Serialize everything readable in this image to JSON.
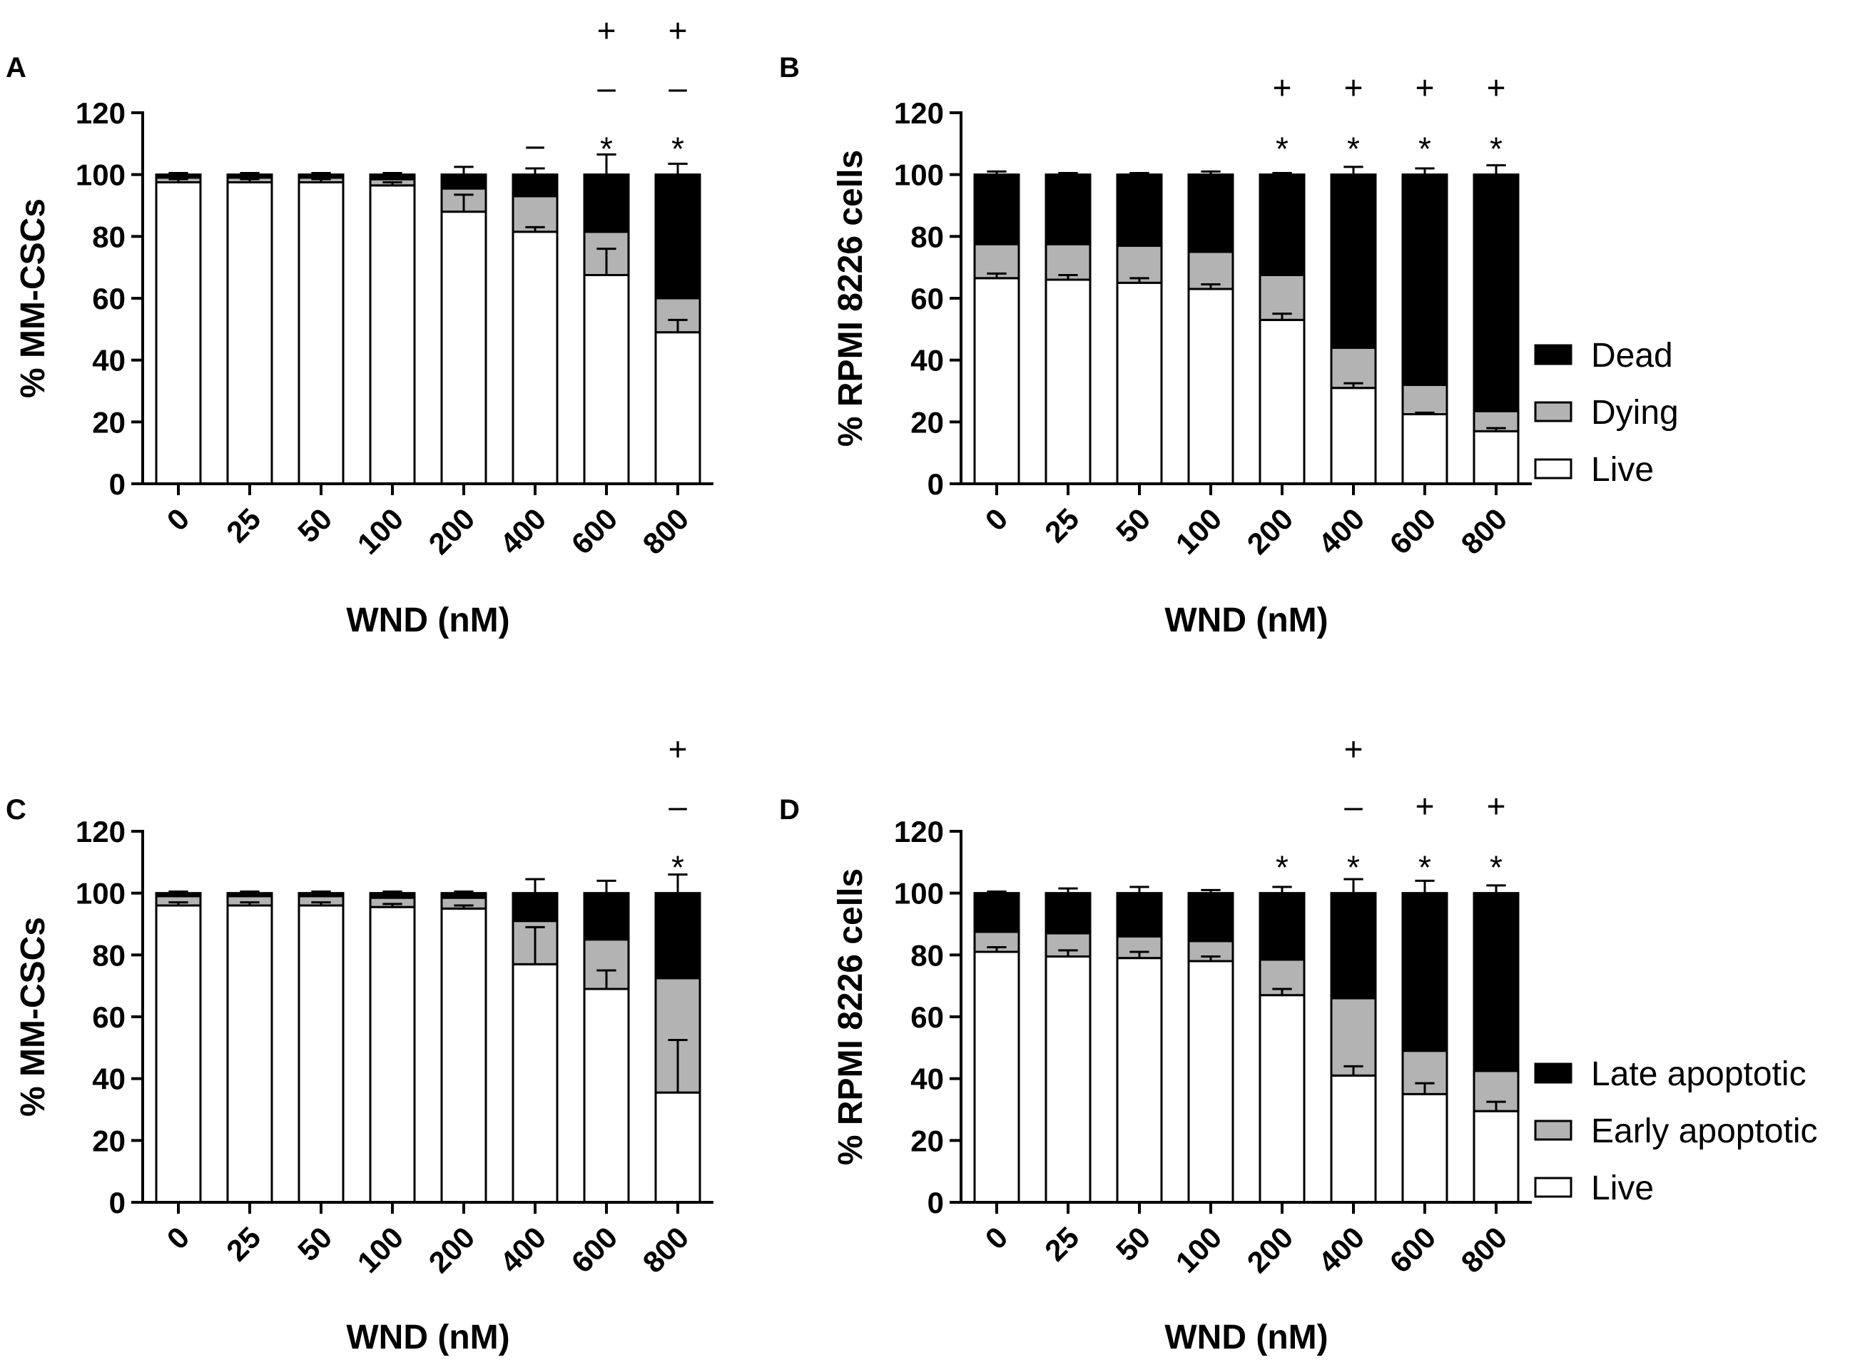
{
  "colors": {
    "live": "#ffffff",
    "mid": "#b3b3b3",
    "dead": "#000000",
    "axis": "#000000"
  },
  "chart_data": [
    {
      "panel": "A",
      "type": "bar",
      "stacked": true,
      "xlabel": "WND (nM)",
      "ylabel": "% MM-CSCs",
      "ylim": [
        0,
        120
      ],
      "yticks": [
        "0",
        "20",
        "40",
        "60",
        "80",
        "100",
        "120"
      ],
      "categories": [
        "0",
        "25",
        "50",
        "100",
        "200",
        "400",
        "600",
        "800"
      ],
      "series": [
        {
          "name": "Live",
          "values": [
            97.5,
            97.5,
            97.5,
            96.5,
            88,
            81.5,
            67.5,
            49
          ],
          "errors": [
            1,
            1,
            1,
            1,
            5.5,
            1.5,
            8.5,
            4
          ]
        },
        {
          "name": "Dying",
          "values": [
            1.5,
            1.5,
            1.5,
            2,
            7.5,
            11.5,
            14,
            11
          ],
          "errors": [
            0,
            0,
            0,
            0,
            0,
            0,
            0,
            0
          ]
        },
        {
          "name": "Dead",
          "values": [
            1,
            1,
            1,
            1.5,
            4.5,
            7,
            18.5,
            40
          ],
          "errors": [
            0.5,
            0.5,
            0.5,
            0.5,
            2.5,
            2,
            6.5,
            3.5
          ]
        }
      ],
      "annotations": [
        {
          "category": "400",
          "marks": [
            "–"
          ]
        },
        {
          "category": "600",
          "marks": [
            "*",
            "–",
            "+"
          ]
        },
        {
          "category": "800",
          "marks": [
            "*",
            "–",
            "+"
          ]
        }
      ]
    },
    {
      "panel": "B",
      "type": "bar",
      "stacked": true,
      "xlabel": "WND (nM)",
      "ylabel": "% RPMI 8226 cells",
      "ylim": [
        0,
        120
      ],
      "yticks": [
        "0",
        "20",
        "40",
        "60",
        "80",
        "100",
        "120"
      ],
      "categories": [
        "0",
        "25",
        "50",
        "100",
        "200",
        "400",
        "600",
        "800"
      ],
      "legend": [
        "Dead",
        "Dying",
        "Live"
      ],
      "series": [
        {
          "name": "Live",
          "values": [
            66.5,
            66,
            65,
            63,
            53,
            31,
            22.5,
            17
          ],
          "errors": [
            1.5,
            1.5,
            1.5,
            1.5,
            2,
            1.5,
            0.5,
            1
          ]
        },
        {
          "name": "Dying",
          "values": [
            11,
            11.5,
            12,
            12,
            14.5,
            13,
            9.5,
            6.5
          ],
          "errors": [
            0,
            0,
            0,
            0,
            0,
            0,
            0,
            0
          ]
        },
        {
          "name": "Dead",
          "values": [
            22.5,
            22.5,
            23,
            25,
            32.5,
            56,
            68,
            76.5
          ],
          "errors": [
            1,
            0.5,
            0.5,
            1,
            0.5,
            2.5,
            2,
            3
          ]
        }
      ],
      "annotations": [
        {
          "category": "200",
          "marks": [
            "*",
            "+"
          ]
        },
        {
          "category": "400",
          "marks": [
            "*",
            "+"
          ]
        },
        {
          "category": "600",
          "marks": [
            "*",
            "+"
          ]
        },
        {
          "category": "800",
          "marks": [
            "*",
            "+"
          ]
        }
      ]
    },
    {
      "panel": "C",
      "type": "bar",
      "stacked": true,
      "xlabel": "WND (nM)",
      "ylabel": "% MM-CSCs",
      "ylim": [
        0,
        120
      ],
      "yticks": [
        "0",
        "20",
        "40",
        "60",
        "80",
        "100",
        "120"
      ],
      "categories": [
        "0",
        "25",
        "50",
        "100",
        "200",
        "400",
        "600",
        "800"
      ],
      "series": [
        {
          "name": "Live",
          "values": [
            96,
            96,
            96,
            95.5,
            95,
            77,
            69,
            35.5
          ],
          "errors": [
            1,
            1,
            1,
            1,
            1,
            12,
            6,
            17
          ]
        },
        {
          "name": "Early apoptotic",
          "values": [
            3,
            3,
            3,
            3,
            3.5,
            14,
            16,
            37
          ],
          "errors": [
            0,
            0,
            0,
            0,
            0,
            0,
            0,
            0
          ]
        },
        {
          "name": "Late apoptotic",
          "values": [
            1,
            1,
            1,
            1.5,
            1.5,
            9,
            15,
            27.5
          ],
          "errors": [
            0.5,
            0.5,
            0.5,
            0.5,
            0.5,
            4.5,
            4,
            6
          ]
        }
      ],
      "annotations": [
        {
          "category": "800",
          "marks": [
            "*",
            "–",
            "+"
          ]
        }
      ]
    },
    {
      "panel": "D",
      "type": "bar",
      "stacked": true,
      "xlabel": "WND (nM)",
      "ylabel": "% RPMI 8226 cells",
      "ylim": [
        0,
        120
      ],
      "yticks": [
        "0",
        "20",
        "40",
        "60",
        "80",
        "100",
        "120"
      ],
      "categories": [
        "0",
        "25",
        "50",
        "100",
        "200",
        "400",
        "600",
        "800"
      ],
      "legend": [
        "Late apoptotic",
        "Early apoptotic",
        "Live"
      ],
      "series": [
        {
          "name": "Live",
          "values": [
            81,
            79.5,
            79,
            78,
            67,
            41,
            35,
            29.5
          ],
          "errors": [
            1.5,
            2,
            2,
            1.5,
            2,
            3,
            3.5,
            3
          ]
        },
        {
          "name": "Early apoptotic",
          "values": [
            6.5,
            7.5,
            7,
            6.5,
            11.5,
            25,
            14,
            13
          ],
          "errors": [
            0,
            0,
            0,
            0,
            0,
            0,
            0,
            0
          ]
        },
        {
          "name": "Late apoptotic",
          "values": [
            12.5,
            13,
            14,
            15.5,
            21.5,
            34,
            51,
            57.5
          ],
          "errors": [
            0.5,
            1.5,
            2,
            1,
            2,
            4.5,
            4,
            2.5
          ]
        }
      ],
      "annotations": [
        {
          "category": "200",
          "marks": [
            "*"
          ]
        },
        {
          "category": "400",
          "marks": [
            "*",
            "–",
            "+"
          ]
        },
        {
          "category": "600",
          "marks": [
            "*",
            "+"
          ]
        },
        {
          "category": "800",
          "marks": [
            "*",
            "+"
          ]
        }
      ]
    }
  ]
}
